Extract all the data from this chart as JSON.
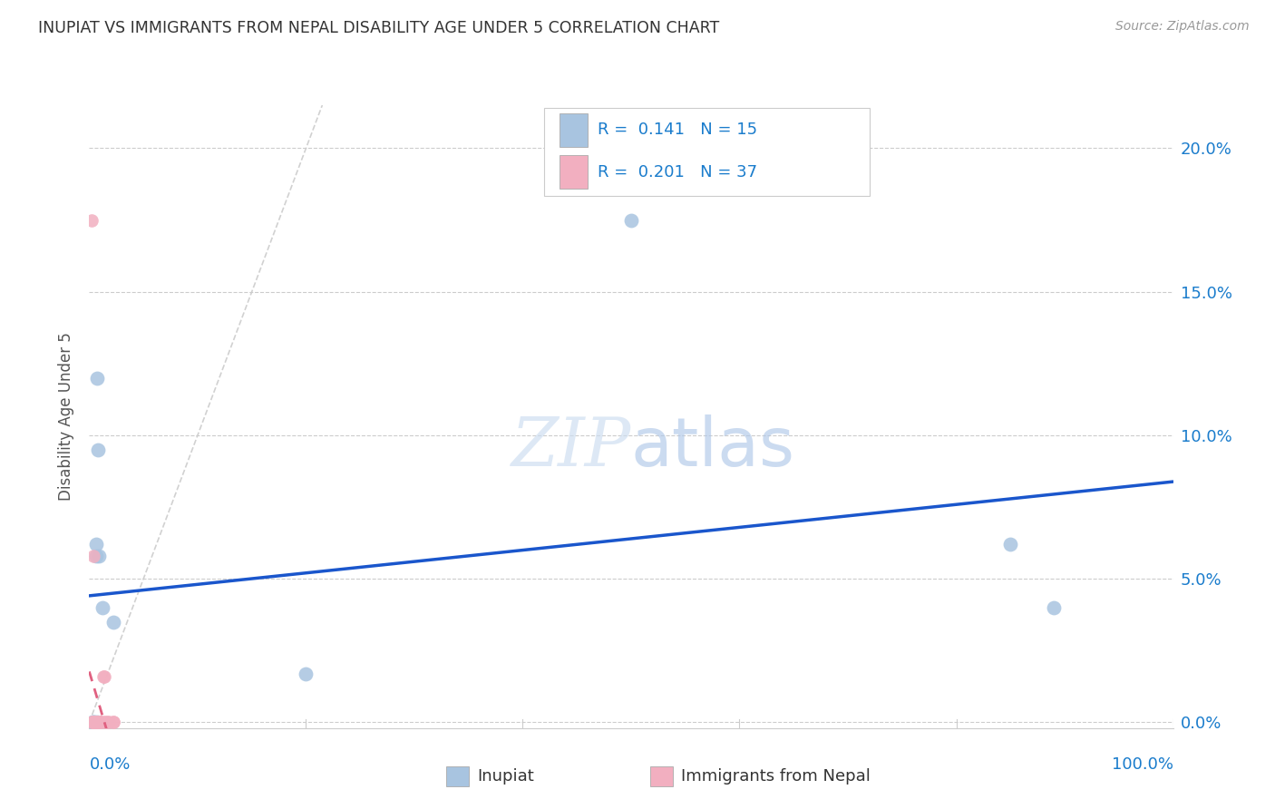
{
  "title": "INUPIAT VS IMMIGRANTS FROM NEPAL DISABILITY AGE UNDER 5 CORRELATION CHART",
  "source": "Source: ZipAtlas.com",
  "ylabel": "Disability Age Under 5",
  "ytick_values": [
    0,
    0.05,
    0.1,
    0.15,
    0.2
  ],
  "xlim": [
    0,
    1.0
  ],
  "ylim": [
    -0.002,
    0.215
  ],
  "inupiat_color": "#a8c4e0",
  "nepal_color": "#f2afc0",
  "inupiat_line_color": "#1a56cc",
  "nepal_line_color": "#e06080",
  "diagonal_color": "#cccccc",
  "background_color": "#ffffff",
  "inupiat_x": [
    0.003,
    0.004,
    0.005,
    0.006,
    0.006,
    0.007,
    0.007,
    0.008,
    0.009,
    0.012,
    0.022,
    0.2,
    0.5,
    0.85,
    0.89
  ],
  "inupiat_y": [
    0.0,
    0.0,
    0.0,
    0.058,
    0.062,
    0.0,
    0.12,
    0.095,
    0.058,
    0.04,
    0.035,
    0.017,
    0.175,
    0.062,
    0.04
  ],
  "nepal_x": [
    0.002,
    0.003,
    0.003,
    0.003,
    0.003,
    0.004,
    0.004,
    0.004,
    0.004,
    0.005,
    0.005,
    0.005,
    0.005,
    0.006,
    0.006,
    0.006,
    0.006,
    0.007,
    0.007,
    0.007,
    0.008,
    0.008,
    0.008,
    0.009,
    0.009,
    0.01,
    0.01,
    0.01,
    0.01,
    0.012,
    0.013,
    0.014,
    0.015,
    0.016,
    0.018,
    0.022,
    0.022
  ],
  "nepal_y": [
    0.175,
    0.0,
    0.0,
    0.0,
    0.0,
    0.0,
    0.0,
    0.058,
    0.0,
    0.0,
    0.0,
    0.0,
    0.0,
    0.0,
    0.0,
    0.0,
    0.0,
    0.0,
    0.0,
    0.0,
    0.0,
    0.0,
    0.0,
    0.0,
    0.0,
    0.0,
    0.0,
    0.0,
    0.0,
    0.0,
    0.016,
    0.016,
    0.0,
    0.0,
    0.0,
    0.0,
    0.0
  ],
  "legend_text1": "R =  0.141   N = 15",
  "legend_text2": "R =  0.201   N = 37",
  "legend_label1": "Inupiat",
  "legend_label2": "Immigrants from Nepal"
}
